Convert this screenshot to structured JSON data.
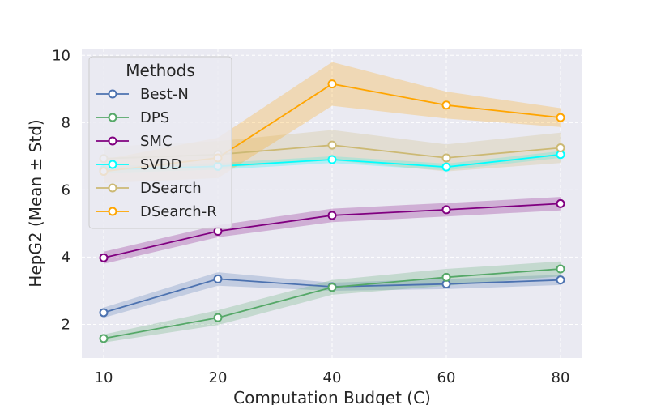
{
  "chart_data": {
    "type": "line",
    "xlabel": "Computation Budget (C)",
    "ylabel": "HepG2 (Mean ± Std)",
    "x": [
      10,
      20,
      40,
      60,
      80
    ],
    "x_tick_labels": [
      "10",
      "20",
      "40",
      "60",
      "80"
    ],
    "x_scale": "categorical",
    "ylim": [
      1.0,
      10.2
    ],
    "y_ticks": [
      2,
      4,
      6,
      8,
      10
    ],
    "y_tick_labels": [
      "2",
      "4",
      "6",
      "8",
      "10"
    ],
    "grid": true,
    "grid_style": "dashed",
    "background_color": "#eaeaf2",
    "legend": {
      "title": "Methods",
      "placement": "top-left"
    },
    "series": [
      {
        "name": "Best-N",
        "color": "#4c72b0",
        "values": [
          2.35,
          3.35,
          3.12,
          3.2,
          3.32
        ],
        "std": [
          0.15,
          0.2,
          0.12,
          0.15,
          0.15
        ]
      },
      {
        "name": "DPS",
        "color": "#55a868",
        "values": [
          1.58,
          2.2,
          3.1,
          3.4,
          3.65
        ],
        "std": [
          0.12,
          0.22,
          0.22,
          0.25,
          0.22
        ]
      },
      {
        "name": "SMC",
        "color": "#800080",
        "values": [
          3.98,
          4.77,
          5.24,
          5.41,
          5.59
        ],
        "std": [
          0.18,
          0.18,
          0.2,
          0.2,
          0.2
        ]
      },
      {
        "name": "SVDD",
        "color": "#00ffff",
        "values": [
          6.6,
          6.7,
          6.9,
          6.68,
          7.05
        ],
        "std": [
          0.1,
          0.1,
          0.1,
          0.1,
          0.1
        ]
      },
      {
        "name": "DSearch",
        "color": "#ccb974",
        "values": [
          6.93,
          7.05,
          7.33,
          6.95,
          7.25
        ],
        "std": [
          0.35,
          0.4,
          0.45,
          0.4,
          0.45
        ]
      },
      {
        "name": "DSearch-R",
        "color": "#ffa500",
        "values": [
          6.55,
          6.95,
          9.15,
          8.52,
          8.15
        ],
        "std": [
          0.35,
          0.6,
          0.65,
          0.4,
          0.28
        ]
      }
    ]
  }
}
